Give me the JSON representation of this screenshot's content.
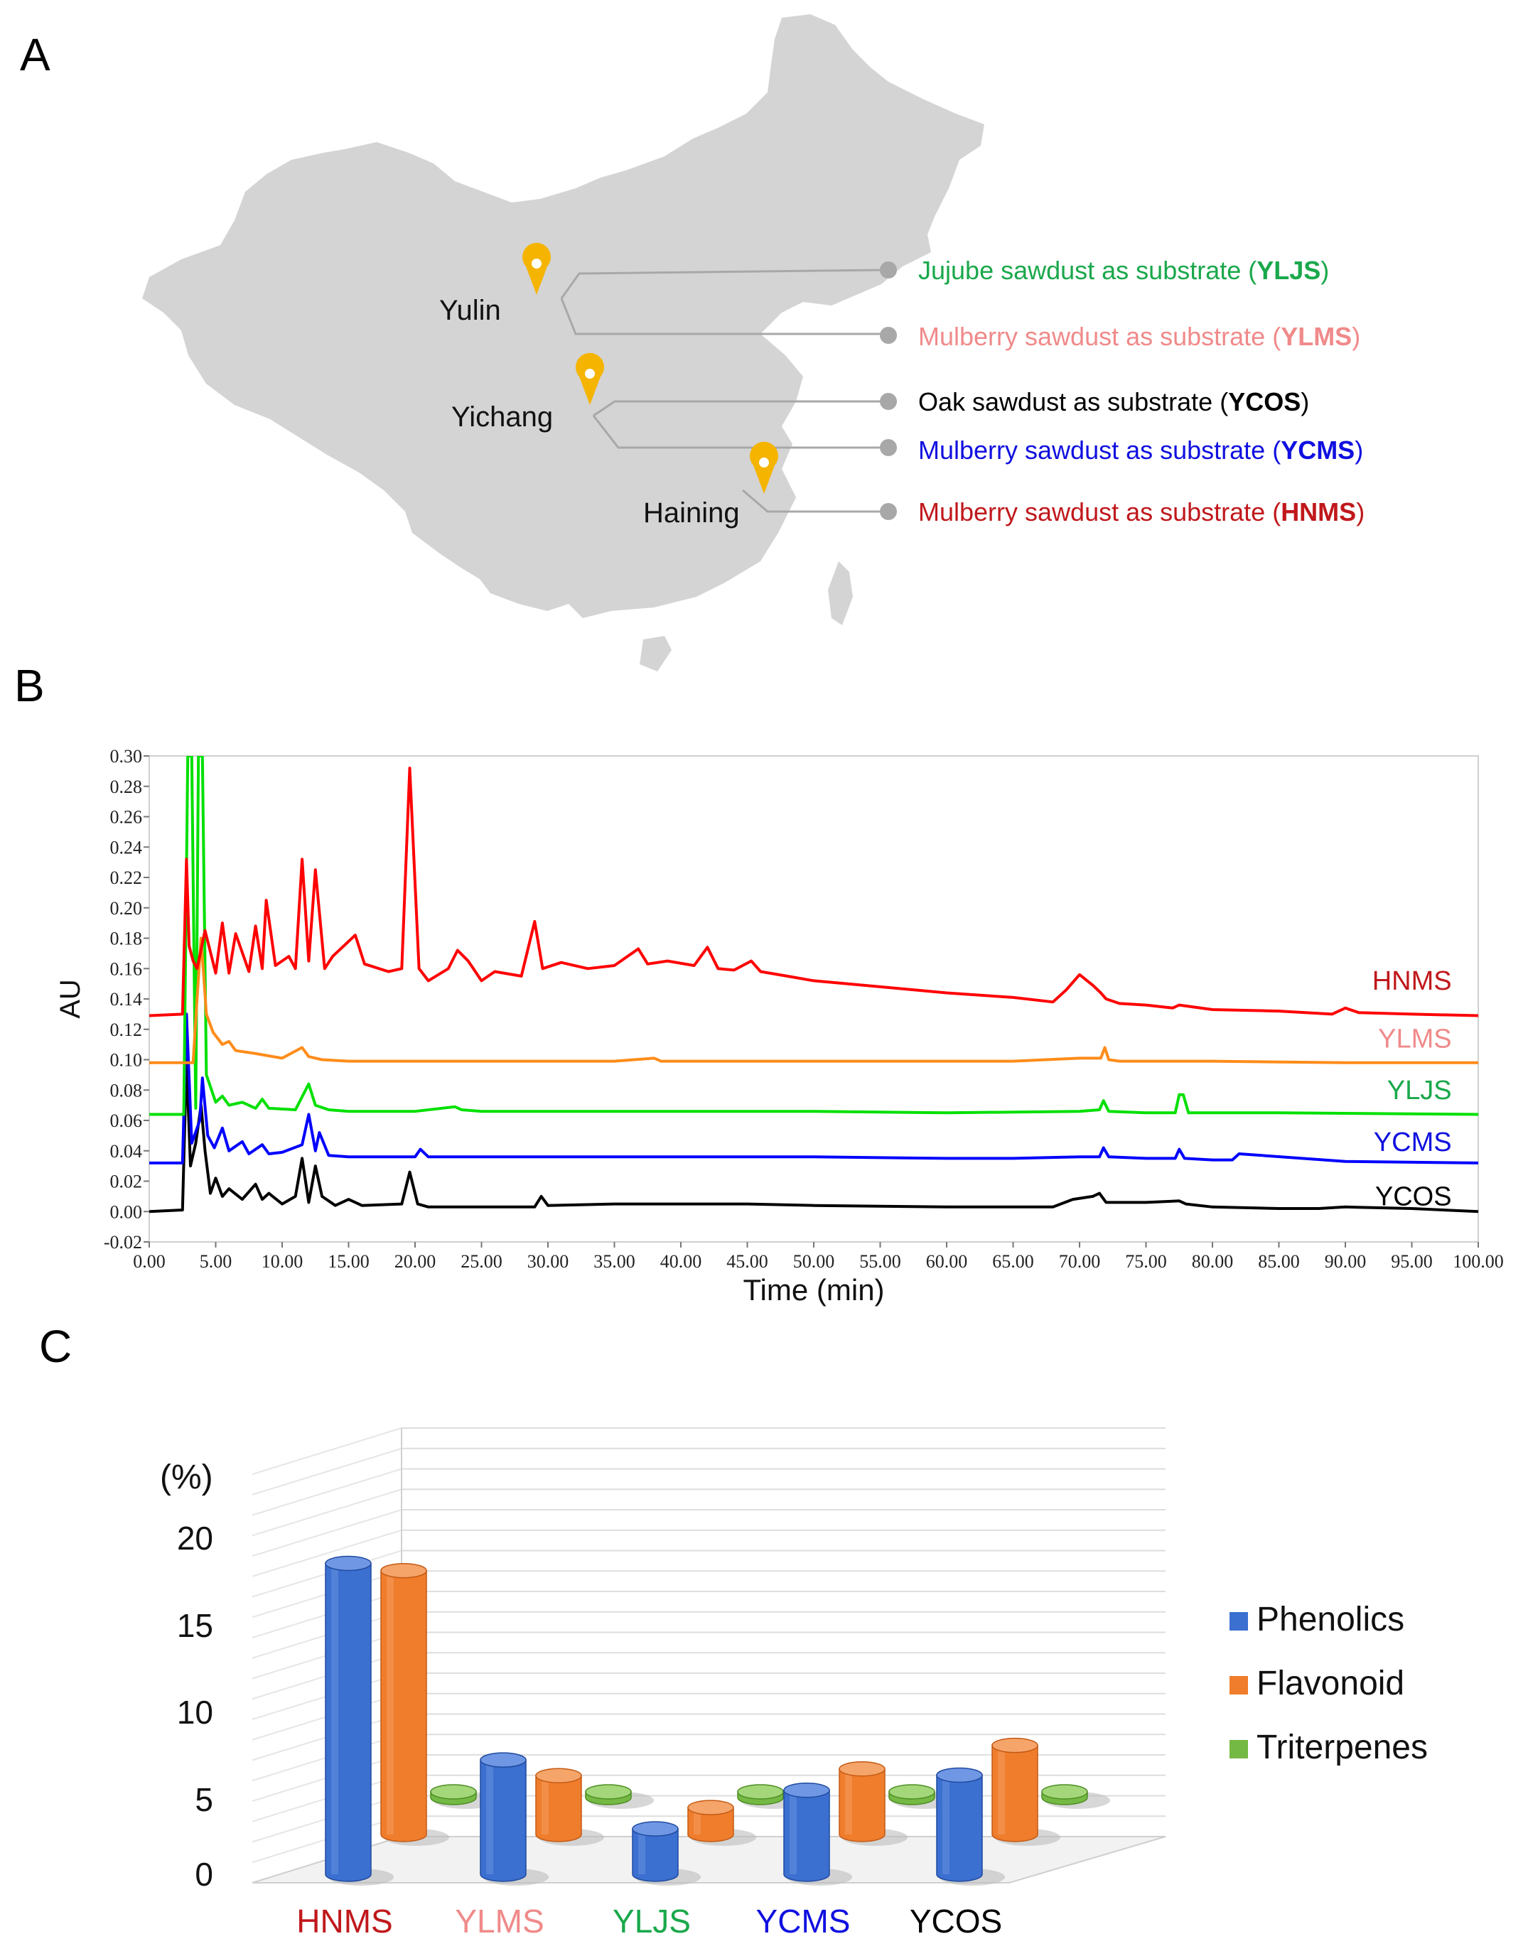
{
  "panels": {
    "a": "A",
    "b": "B",
    "c": "C"
  },
  "map": {
    "cities": [
      "Yulin",
      "Yichang",
      "Haining"
    ],
    "substrates": [
      {
        "prefix": "Jujube sawdust as substrate (",
        "code": "YLJS",
        "suffix": ")",
        "color": "#1aa84b"
      },
      {
        "prefix": "Mulberry sawdust as substrate (",
        "code": "YLMS",
        "suffix": ")",
        "color": "#f08a8a"
      },
      {
        "prefix": "Oak sawdust as substrate (",
        "code": "YCOS",
        "suffix": ")",
        "color": "#000000"
      },
      {
        "prefix": "Mulberry sawdust as substrate (",
        "code": "YCMS",
        "suffix": ")",
        "color": "#1010e0"
      },
      {
        "prefix": "Mulberry sawdust as substrate (",
        "code": "HNMS",
        "suffix": ")",
        "color": "#c0181c"
      }
    ],
    "map_color": "#d4d4d4",
    "pin_color": "#f5b400"
  },
  "chart_data": [
    {
      "type": "line",
      "title": "",
      "xlabel": "Time (min)",
      "ylabel": "AU",
      "xlim": [
        0,
        100
      ],
      "ylim": [
        -0.02,
        0.3
      ],
      "x_tick_labels": [
        "0.00",
        "5.00",
        "10.00",
        "15.00",
        "20.00",
        "25.00",
        "30.00",
        "35.00",
        "40.00",
        "45.00",
        "50.00",
        "55.00",
        "60.00",
        "65.00",
        "70.00",
        "75.00",
        "80.00",
        "85.00",
        "90.00",
        "95.00",
        "100.00"
      ],
      "y_tick_labels": [
        "-0.02",
        "0.00",
        "0.02",
        "0.04",
        "0.06",
        "0.08",
        "0.10",
        "0.12",
        "0.14",
        "0.16",
        "0.18",
        "0.20",
        "0.22",
        "0.24",
        "0.26",
        "0.28",
        "0.30"
      ],
      "series": [
        {
          "name": "HNMS",
          "color": "#ff0000",
          "label_color": "#c0181c",
          "x": [
            0,
            2.5,
            2.8,
            3.0,
            3.3,
            3.6,
            4.2,
            5.0,
            5.5,
            6.0,
            6.5,
            7.5,
            8.0,
            8.5,
            8.8,
            9.5,
            10.5,
            11.0,
            11.5,
            12.0,
            12.5,
            13.2,
            13.8,
            15.5,
            16.2,
            18.0,
            19.0,
            19.6,
            20.3,
            21.0,
            22.5,
            23.2,
            24.0,
            25.0,
            26.0,
            28.0,
            29.0,
            29.6,
            31.0,
            33.0,
            35.0,
            36.8,
            37.5,
            39.0,
            41.0,
            42.0,
            42.8,
            44.0,
            45.3,
            46.0,
            48.0,
            50.0,
            55.0,
            60.0,
            65.0,
            68.0,
            69.0,
            70.0,
            71.0,
            71.6,
            72.0,
            73.0,
            75.0,
            77.0,
            77.5,
            80.0,
            85.0,
            89.0,
            90.0,
            91.0,
            95.0,
            100.0
          ],
          "y": [
            0.129,
            0.13,
            0.232,
            0.175,
            0.165,
            0.16,
            0.185,
            0.157,
            0.19,
            0.157,
            0.183,
            0.158,
            0.188,
            0.16,
            0.205,
            0.162,
            0.168,
            0.16,
            0.232,
            0.165,
            0.225,
            0.16,
            0.168,
            0.182,
            0.163,
            0.158,
            0.16,
            0.292,
            0.16,
            0.152,
            0.16,
            0.172,
            0.165,
            0.152,
            0.158,
            0.155,
            0.191,
            0.16,
            0.164,
            0.16,
            0.162,
            0.173,
            0.163,
            0.165,
            0.162,
            0.174,
            0.16,
            0.159,
            0.165,
            0.158,
            0.155,
            0.152,
            0.148,
            0.144,
            0.141,
            0.138,
            0.146,
            0.156,
            0.149,
            0.144,
            0.14,
            0.137,
            0.136,
            0.134,
            0.136,
            0.133,
            0.132,
            0.13,
            0.134,
            0.131,
            0.13,
            0.129
          ]
        },
        {
          "name": "YLMS",
          "color": "#ff8c1a",
          "label_color": "#f08a8a",
          "x": [
            0,
            3.3,
            3.6,
            3.9,
            4.3,
            4.8,
            5.5,
            6.0,
            6.5,
            8.0,
            10.0,
            11.5,
            12.0,
            13.0,
            15.0,
            20.0,
            25.0,
            35.0,
            38.0,
            38.5,
            45.0,
            55.0,
            65.0,
            70.0,
            71.6,
            71.9,
            72.2,
            73.0,
            80.0,
            90.0,
            100.0
          ],
          "y": [
            0.098,
            0.098,
            0.14,
            0.18,
            0.13,
            0.118,
            0.11,
            0.112,
            0.106,
            0.104,
            0.101,
            0.108,
            0.102,
            0.1,
            0.099,
            0.099,
            0.099,
            0.099,
            0.101,
            0.099,
            0.099,
            0.099,
            0.099,
            0.101,
            0.101,
            0.108,
            0.1,
            0.099,
            0.099,
            0.098,
            0.098
          ]
        },
        {
          "name": "YLJS",
          "color": "#00e000",
          "label_color": "#1aa84b",
          "x": [
            0,
            2.6,
            2.9,
            3.2,
            3.5,
            3.7,
            4.0,
            4.3,
            5.0,
            5.5,
            6.0,
            7.0,
            8.0,
            8.5,
            9.0,
            11.0,
            12.0,
            12.5,
            13.5,
            15.0,
            20.0,
            23.0,
            23.5,
            25.0,
            30.0,
            35.0,
            40.0,
            50.0,
            60.0,
            70.0,
            71.5,
            71.8,
            72.2,
            75.0,
            77.2,
            77.5,
            77.8,
            78.2,
            79.0,
            85.0,
            100.0
          ],
          "y": [
            0.064,
            0.064,
            0.3,
            0.3,
            0.068,
            0.3,
            0.3,
            0.09,
            0.072,
            0.076,
            0.07,
            0.072,
            0.068,
            0.074,
            0.068,
            0.067,
            0.084,
            0.07,
            0.067,
            0.066,
            0.066,
            0.069,
            0.067,
            0.066,
            0.066,
            0.066,
            0.066,
            0.066,
            0.065,
            0.066,
            0.067,
            0.073,
            0.066,
            0.065,
            0.065,
            0.077,
            0.077,
            0.065,
            0.065,
            0.065,
            0.064
          ]
        },
        {
          "name": "YCMS",
          "color": "#0000ff",
          "label_color": "#1010e0",
          "x": [
            0,
            2.5,
            2.8,
            3.2,
            3.8,
            4.0,
            4.4,
            4.9,
            5.5,
            6.0,
            7.0,
            7.5,
            8.5,
            9.0,
            10.0,
            11.5,
            12.0,
            12.5,
            12.8,
            13.5,
            15.0,
            20.0,
            20.4,
            21.0,
            25.0,
            30.0,
            40.0,
            50.0,
            60.0,
            65.0,
            70.0,
            71.5,
            71.8,
            72.2,
            75.0,
            77.2,
            77.5,
            77.9,
            80.0,
            81.5,
            82.0,
            90.0,
            100.0
          ],
          "y": [
            0.032,
            0.032,
            0.13,
            0.045,
            0.06,
            0.088,
            0.05,
            0.042,
            0.055,
            0.04,
            0.046,
            0.038,
            0.044,
            0.038,
            0.039,
            0.044,
            0.064,
            0.04,
            0.052,
            0.037,
            0.036,
            0.036,
            0.041,
            0.036,
            0.036,
            0.036,
            0.036,
            0.036,
            0.035,
            0.035,
            0.036,
            0.036,
            0.042,
            0.036,
            0.035,
            0.035,
            0.041,
            0.035,
            0.034,
            0.034,
            0.038,
            0.033,
            0.032
          ]
        },
        {
          "name": "YCOS",
          "color": "#000000",
          "label_color": "#000000",
          "x": [
            0,
            2.5,
            2.8,
            3.1,
            3.5,
            3.9,
            4.2,
            4.6,
            5.0,
            5.5,
            6.0,
            7.0,
            8.0,
            8.5,
            9.0,
            10.0,
            11.0,
            11.5,
            12.0,
            12.5,
            13.0,
            14.0,
            15.0,
            16.0,
            19.0,
            19.6,
            20.2,
            21.0,
            25.0,
            29.0,
            29.5,
            30.0,
            35.0,
            40.0,
            45.0,
            50.0,
            60.0,
            65.0,
            68.0,
            69.5,
            71.0,
            71.5,
            72.0,
            75.0,
            77.5,
            78.0,
            80.0,
            85.0,
            88.0,
            90.0,
            95.0,
            100.0
          ],
          "y": [
            0.0,
            0.001,
            0.1,
            0.03,
            0.045,
            0.07,
            0.04,
            0.012,
            0.022,
            0.01,
            0.015,
            0.008,
            0.018,
            0.008,
            0.012,
            0.005,
            0.01,
            0.035,
            0.006,
            0.03,
            0.01,
            0.004,
            0.008,
            0.004,
            0.005,
            0.026,
            0.005,
            0.003,
            0.003,
            0.003,
            0.01,
            0.004,
            0.005,
            0.005,
            0.005,
            0.004,
            0.003,
            0.003,
            0.003,
            0.008,
            0.01,
            0.012,
            0.006,
            0.006,
            0.007,
            0.005,
            0.003,
            0.002,
            0.002,
            0.003,
            0.002,
            0.0
          ]
        }
      ]
    },
    {
      "type": "bar",
      "subtype": "3d-cylinder",
      "title": "",
      "ylabel": "(%)",
      "ylim": [
        0,
        20
      ],
      "y_ticks": [
        0,
        5,
        10,
        15,
        20
      ],
      "categories": [
        "HNMS",
        "YLMS",
        "YLJS",
        "YCMS",
        "YCOS"
      ],
      "category_colors": [
        "#c0181c",
        "#f08a8a",
        "#1aa84b",
        "#1010e0",
        "#000000"
      ],
      "series": [
        {
          "name": "Phenolics",
          "color": "#3b6fd0",
          "values": [
            18.5,
            6.8,
            2.7,
            5.0,
            5.9
          ]
        },
        {
          "name": "Flavonoid",
          "color": "#ef7d2c",
          "values": [
            15.7,
            3.5,
            1.6,
            3.9,
            5.3
          ]
        },
        {
          "name": "Triterpenes",
          "color": "#74b943",
          "values": [
            0.5,
            0.5,
            0.5,
            0.5,
            0.5
          ]
        }
      ],
      "legend": "right"
    }
  ]
}
